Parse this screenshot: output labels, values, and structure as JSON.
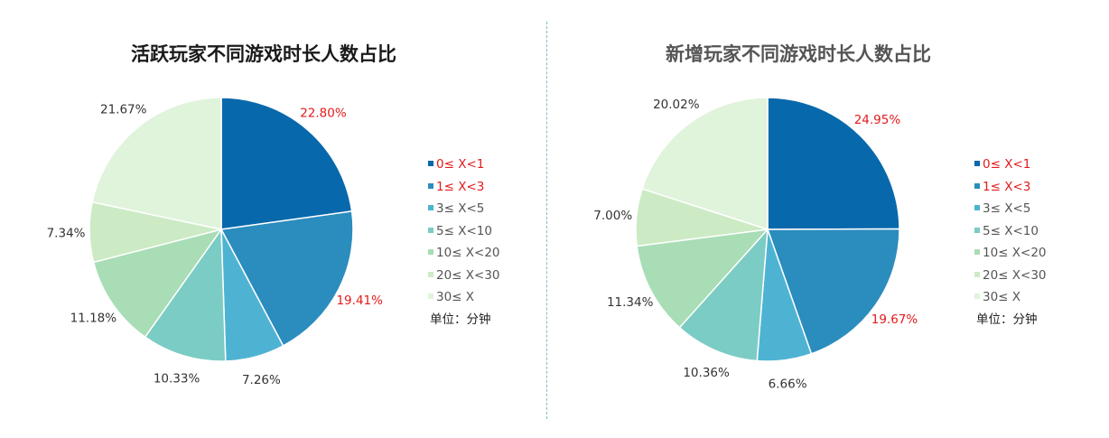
{
  "divider_color": "#7fbfbf",
  "colors": [
    "#0868ac",
    "#2b8cbe",
    "#4eb3d3",
    "#7bccc4",
    "#a8ddb5",
    "#ccebc5",
    "#e0f3db"
  ],
  "highlight_color": "#e31a1c",
  "unit_note": "单位：分钟",
  "chart_data": [
    {
      "type": "pie",
      "title": "活跃玩家不同游戏时长人数占比",
      "categories": [
        "0≤ X<1",
        "1≤ X<3",
        "3≤ X<5",
        "5≤ X<10",
        "10≤ X<20",
        "20≤ X<30",
        "30≤ X"
      ],
      "values": [
        22.8,
        19.41,
        7.26,
        10.33,
        11.18,
        7.34,
        21.67
      ],
      "labels": [
        "22.80%",
        "19.41%",
        "7.26%",
        "10.33%",
        "11.18%",
        "7.34%",
        "21.67%"
      ],
      "highlighted": [
        0,
        1
      ],
      "legend_position": "right"
    },
    {
      "type": "pie",
      "title": "新增玩家不同游戏时长人数占比",
      "categories": [
        "0≤ X<1",
        "1≤ X<3",
        "3≤ X<5",
        "5≤ X<10",
        "10≤ X<20",
        "20≤ X<30",
        "30≤ X"
      ],
      "values": [
        24.95,
        19.67,
        6.66,
        10.36,
        11.34,
        7.0,
        20.02
      ],
      "labels": [
        "24.95%",
        "19.67%",
        "6.66%",
        "10.36%",
        "11.34%",
        "7.00%",
        "20.02%"
      ],
      "highlighted": [
        0,
        1
      ],
      "legend_position": "right"
    }
  ]
}
